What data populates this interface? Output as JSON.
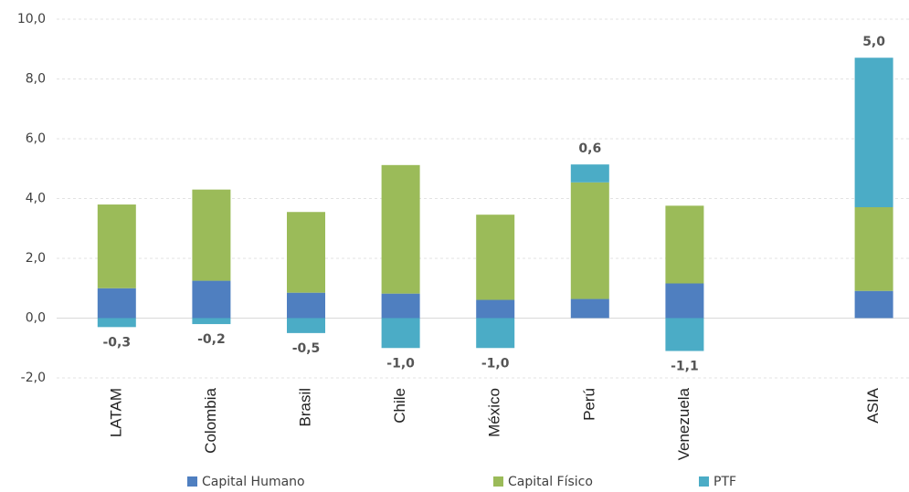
{
  "chart_data": {
    "type": "bar",
    "stacked": true,
    "categories": [
      "LATAM",
      "Colombia",
      "Brasil",
      "Chile",
      "México",
      "Perú",
      "Venezuela",
      null,
      "ASIA"
    ],
    "series": [
      {
        "name": "Capital Humano",
        "color": "#4f7fc0",
        "values": [
          1.0,
          1.25,
          0.85,
          0.82,
          0.61,
          0.64,
          1.16,
          null,
          0.91
        ]
      },
      {
        "name": "Capital Físico",
        "color": "#9bbb59",
        "values": [
          2.8,
          3.05,
          2.7,
          4.3,
          2.85,
          3.9,
          2.6,
          null,
          2.8
        ]
      },
      {
        "name": "PTF",
        "color": "#4bacc6",
        "values": [
          -0.3,
          -0.2,
          -0.5,
          -1.0,
          -1.0,
          0.6,
          -1.1,
          null,
          5.0
        ],
        "value_labels": [
          "-0,3",
          "-0,2",
          "-0,5",
          "-1,0",
          "-1,0",
          "0,6",
          "-1,1",
          null,
          "5,0"
        ]
      }
    ],
    "ylim": [
      -2,
      10
    ],
    "yticks": [
      {
        "value": -2,
        "label": "-2,0"
      },
      {
        "value": 0,
        "label": "0,0"
      },
      {
        "value": 2,
        "label": "2,0"
      },
      {
        "value": 4,
        "label": "4,0"
      },
      {
        "value": 6,
        "label": "6,0"
      },
      {
        "value": 8,
        "label": "8,0"
      },
      {
        "value": 10,
        "label": "10,0"
      }
    ],
    "grid": true,
    "legend": "bottom"
  }
}
